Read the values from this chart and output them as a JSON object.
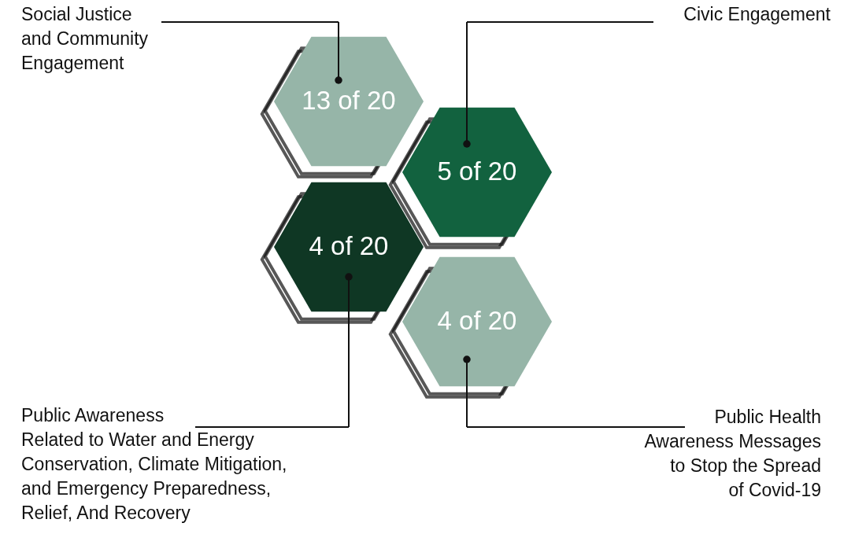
{
  "chart_data": {
    "type": "other",
    "categories": [
      "Social Justice\nand Community\nEngagement",
      "Civic Engagement",
      "Public Awareness\nRelated to Water and Energy\nConservation, Climate Mitigation,\nand Emergency Preparedness,\nRelief, And Recovery",
      "Public Health\nAwareness Messages\nto Stop the Spread\nof Covid-19"
    ],
    "values": [
      13,
      5,
      4,
      4
    ],
    "value_labels": [
      "13 of 20",
      "5 of 20",
      "4 of 20",
      "4 of 20"
    ],
    "colors": [
      "#96b5a8",
      "#12623f",
      "#0f3724",
      "#96b5a8"
    ]
  }
}
